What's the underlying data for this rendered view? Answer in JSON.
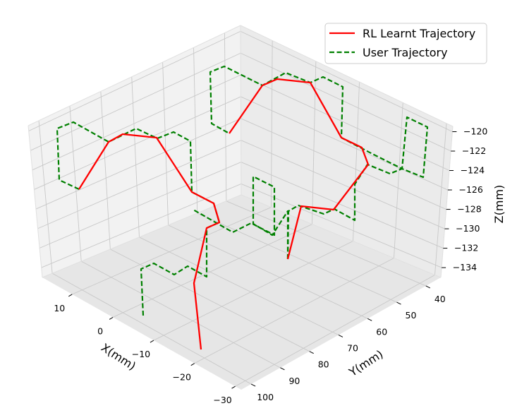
{
  "chart_data": {
    "type": "line",
    "projection": "3d",
    "xlabel": "X(mm)",
    "ylabel": "Y(mm)",
    "zlabel": "Z(mm)",
    "x_ticks": [
      "10",
      "0",
      "−10",
      "−20",
      "−30"
    ],
    "y_ticks": [
      "40",
      "50",
      "60",
      "70",
      "80",
      "90",
      "100"
    ],
    "z_ticks": [
      "−120",
      "−122",
      "−124",
      "−126",
      "−128",
      "−130",
      "−132",
      "−134"
    ],
    "grid": true,
    "legend_position": "top-right",
    "series": [
      {
        "name": "RL Learnt Trajectory",
        "color": "#ff0000",
        "style": "solid",
        "screen_path": [
          [
            285,
            495
          ],
          [
            275,
            401
          ],
          [
            293,
            323
          ],
          [
            311,
            315
          ],
          [
            303,
            288
          ],
          [
            272,
            272
          ],
          [
            222,
            195
          ],
          [
            174,
            190
          ],
          [
            154,
            201
          ],
          [
            112,
            268
          ]
        ]
      },
      {
        "name": "RL Learnt Trajectory",
        "color": "#ff0000",
        "style": "solid",
        "screen_path": [
          [
            408,
            367
          ],
          [
            427,
            292
          ],
          [
            473,
            297
          ],
          [
            522,
            233
          ],
          [
            513,
            209
          ],
          [
            484,
            195
          ],
          [
            440,
            117
          ],
          [
            393,
            112
          ],
          [
            372,
            121
          ],
          [
            325,
            189
          ]
        ]
      },
      {
        "name": "User Trajectory",
        "color": "#008000",
        "style": "dashed",
        "screen_path": [
          [
            203,
            447
          ],
          [
            200,
            381
          ],
          [
            218,
            373
          ],
          [
            247,
            389
          ],
          [
            266,
            377
          ],
          [
            293,
            392
          ],
          [
            293,
            323
          ],
          [
            311,
            315
          ],
          [
            303,
            288
          ],
          [
            272,
            272
          ],
          [
            270,
            200
          ],
          [
            246,
            187
          ],
          [
            223,
            196
          ],
          [
            193,
            182
          ],
          [
            154,
            201
          ],
          [
            104,
            173
          ],
          [
            81,
            182
          ],
          [
            84,
            255
          ],
          [
            112,
            268
          ]
        ]
      },
      {
        "name": "User Trajectory",
        "color": "#008000",
        "style": "dashed",
        "screen_path": [
          [
            408,
            367
          ],
          [
            409,
            299
          ],
          [
            423,
            291
          ],
          [
            459,
            303
          ],
          [
            474,
            296
          ],
          [
            503,
            312
          ],
          [
            503,
            261
          ],
          [
            521,
            233
          ],
          [
            553,
            246
          ],
          [
            570,
            239
          ],
          [
            600,
            251
          ],
          [
            606,
            180
          ],
          [
            577,
            166
          ],
          [
            570,
            239
          ],
          [
            530,
            219
          ],
          [
            484,
            195
          ],
          [
            486,
            123
          ],
          [
            458,
            109
          ],
          [
            440,
            117
          ],
          [
            405,
            103
          ],
          [
            372,
            121
          ],
          [
            318,
            94
          ],
          [
            298,
            102
          ],
          [
            300,
            175
          ],
          [
            325,
            189
          ]
        ]
      },
      {
        "name": "User Trajectory",
        "color": "#008000",
        "style": "dashed",
        "screen_path": [
          [
            408,
            367
          ],
          [
            408,
            299
          ],
          [
            386,
            333
          ],
          [
            359,
            317
          ],
          [
            359,
            250
          ],
          [
            389,
            265
          ],
          [
            389,
            333
          ],
          [
            356,
            316
          ],
          [
            330,
            329
          ],
          [
            274,
            297
          ]
        ]
      }
    ]
  },
  "legend": [
    {
      "label": "RL Learnt Trajectory",
      "color": "#ff0000",
      "style": "solid"
    },
    {
      "label": "User Trajectory",
      "color": "#008000",
      "style": "dashed"
    }
  ]
}
